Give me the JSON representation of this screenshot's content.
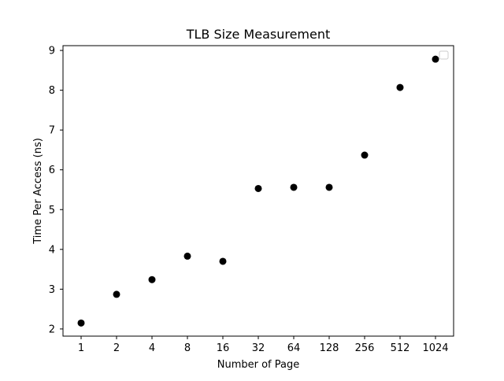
{
  "chart_data": {
    "type": "scatter",
    "title": "TLB Size Measurement",
    "xlabel": "Number of Page",
    "ylabel": "Time Per Access (ns)",
    "x_ticks": [
      "1",
      "2",
      "4",
      "8",
      "16",
      "32",
      "64",
      "128",
      "256",
      "512",
      "1024"
    ],
    "y_ticks": [
      2,
      3,
      4,
      5,
      6,
      7,
      8,
      9
    ],
    "ylim": [
      1.82,
      9.12
    ],
    "grid": false,
    "legend": {
      "placement": "top-right",
      "entries": []
    },
    "series": [
      {
        "marker_color": "#000000",
        "points": [
          {
            "x": "1",
            "y": 2.15
          },
          {
            "x": "2",
            "y": 2.87
          },
          {
            "x": "4",
            "y": 3.24
          },
          {
            "x": "8",
            "y": 3.83
          },
          {
            "x": "16",
            "y": 3.7
          },
          {
            "x": "32",
            "y": 5.53
          },
          {
            "x": "64",
            "y": 5.56
          },
          {
            "x": "128",
            "y": 5.56
          },
          {
            "x": "256",
            "y": 6.37
          },
          {
            "x": "512",
            "y": 8.07
          },
          {
            "x": "1024",
            "y": 8.78
          }
        ]
      }
    ]
  }
}
